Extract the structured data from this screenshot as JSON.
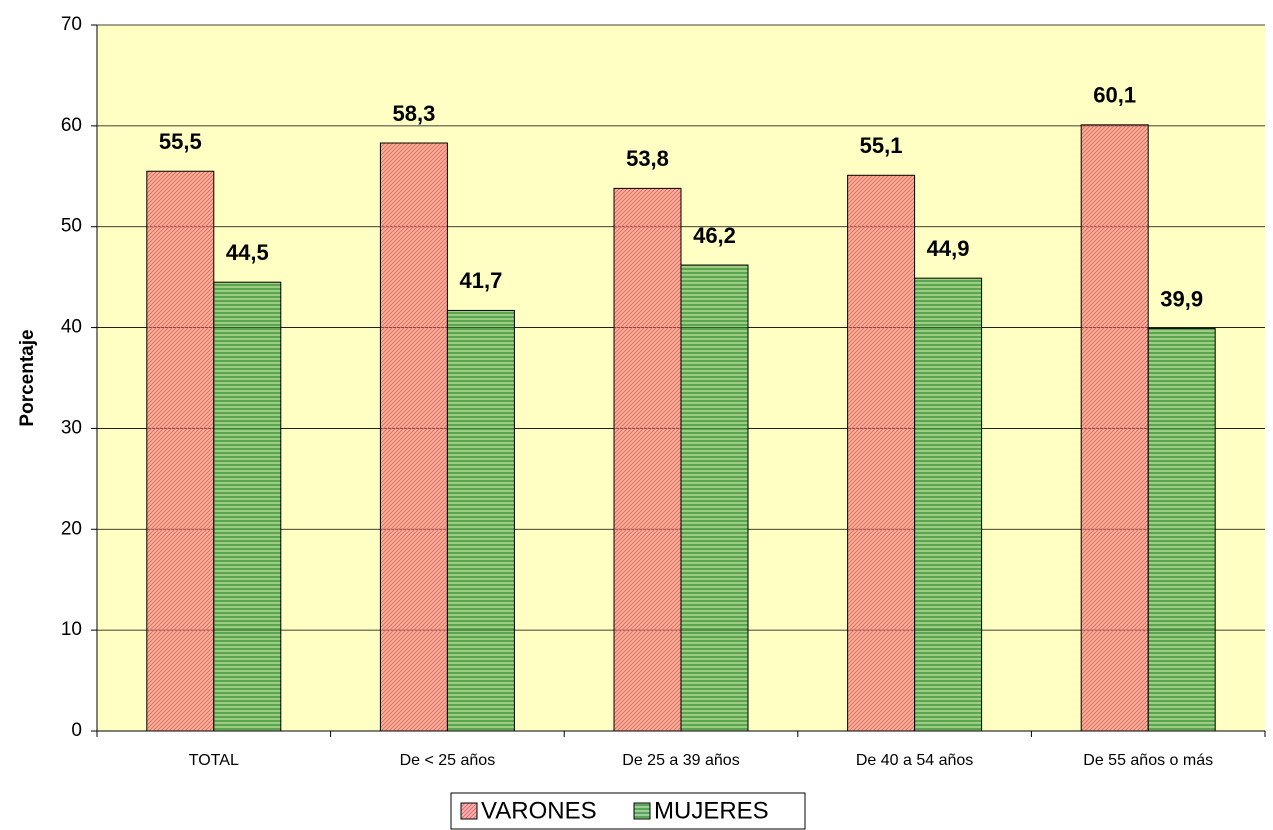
{
  "chart_data": {
    "type": "bar",
    "categories": [
      "TOTAL",
      "De < 25 años",
      "De 25 a 39 años",
      "De 40 a 54 años",
      "De 55 años o más"
    ],
    "series": [
      {
        "name": "VARONES",
        "color": "#e86a6a",
        "values": [
          55.5,
          58.3,
          53.8,
          55.1,
          60.1
        ],
        "value_labels": [
          "55,5",
          "58,3",
          "53,8",
          "55,1",
          "60,1"
        ]
      },
      {
        "name": "MUJERES",
        "color": "#3f9a3f",
        "values": [
          44.5,
          41.7,
          46.2,
          44.9,
          39.9
        ],
        "value_labels": [
          "44,5",
          "41,7",
          "46,2",
          "44,9",
          "39,9"
        ]
      }
    ],
    "y_label": "Porcentaje",
    "ylim": [
      0,
      70
    ],
    "yticks": [
      0,
      10,
      20,
      30,
      40,
      50,
      60,
      70
    ],
    "grid": true,
    "legend": "bottom"
  }
}
